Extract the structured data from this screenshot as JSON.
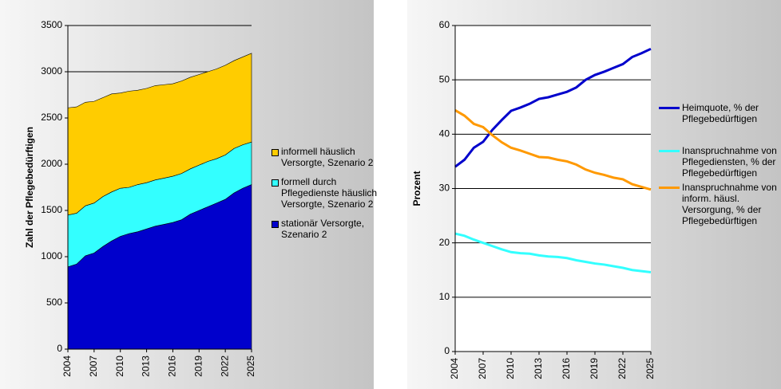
{
  "chart_data": [
    {
      "type": "area",
      "stacked": true,
      "y_label": "Zahl der Pflegebedürftigen",
      "x": [
        2004,
        2005,
        2006,
        2007,
        2008,
        2009,
        2010,
        2011,
        2012,
        2013,
        2014,
        2015,
        2016,
        2017,
        2018,
        2019,
        2020,
        2021,
        2022,
        2023,
        2024,
        2025
      ],
      "xlim": [
        2004,
        2025
      ],
      "xticks": [
        2004,
        2007,
        2010,
        2013,
        2016,
        2019,
        2022,
        2025
      ],
      "ylim": [
        0,
        3500
      ],
      "yticks": [
        0,
        500,
        1000,
        1500,
        2000,
        2500,
        3000,
        3500
      ],
      "grid": true,
      "series": [
        {
          "name": "stationär Versorgte, Szenario 2",
          "color": "#0000cc",
          "values": [
            890,
            920,
            1010,
            1040,
            1110,
            1170,
            1220,
            1250,
            1270,
            1300,
            1330,
            1350,
            1370,
            1400,
            1460,
            1500,
            1540,
            1580,
            1620,
            1690,
            1740,
            1780
          ]
        },
        {
          "name": "formell durch Pflegedienste häuslich Versorgte, Szenario 2",
          "color": "#33ffff",
          "values": [
            560,
            550,
            540,
            540,
            540,
            530,
            520,
            500,
            510,
            500,
            500,
            500,
            500,
            500,
            490,
            490,
            490,
            480,
            480,
            480,
            470,
            460
          ]
        },
        {
          "name": "informell häuslich Versorgte, Szenario 2",
          "color": "#ffcc00",
          "values": [
            1160,
            1150,
            1120,
            1100,
            1070,
            1060,
            1030,
            1040,
            1020,
            1020,
            1020,
            1010,
            1000,
            1000,
            990,
            980,
            970,
            970,
            970,
            950,
            950,
            960
          ]
        }
      ]
    },
    {
      "type": "line",
      "y_label": "Prozent",
      "x": [
        2004,
        2005,
        2006,
        2007,
        2008,
        2009,
        2010,
        2011,
        2012,
        2013,
        2014,
        2015,
        2016,
        2017,
        2018,
        2019,
        2020,
        2021,
        2022,
        2023,
        2024,
        2025
      ],
      "xlim": [
        2004,
        2025
      ],
      "xticks": [
        2004,
        2007,
        2010,
        2013,
        2016,
        2019,
        2022,
        2025
      ],
      "ylim": [
        0,
        60
      ],
      "yticks": [
        0,
        10,
        20,
        30,
        40,
        50,
        60
      ],
      "grid": true,
      "series": [
        {
          "name": "Heimquote, % der Pflegebedürftigen",
          "color": "#0000cc",
          "values": [
            34,
            35.3,
            37.5,
            38.6,
            40.8,
            42.6,
            44.3,
            44.9,
            45.6,
            46.5,
            46.8,
            47.3,
            47.8,
            48.6,
            50,
            50.9,
            51.5,
            52.2,
            52.9,
            54.2,
            54.9,
            55.7
          ]
        },
        {
          "name": "Inanspruchnahme von Pflegediensten, % der Pflegebedürftigen",
          "color": "#33ffff",
          "values": [
            21.7,
            21.3,
            20.6,
            20,
            19.4,
            18.8,
            18.3,
            18.1,
            18,
            17.7,
            17.5,
            17.4,
            17.2,
            16.8,
            16.5,
            16.2,
            16,
            15.7,
            15.4,
            15,
            14.8,
            14.6
          ]
        },
        {
          "name": "Inanspruchnahme von inform. häusl. Versorgung, % der Pflegebedürftigen",
          "color": "#ff9900",
          "values": [
            44.4,
            43.4,
            41.9,
            41.3,
            39.8,
            38.5,
            37.5,
            37,
            36.4,
            35.8,
            35.7,
            35.3,
            35,
            34.4,
            33.5,
            32.9,
            32.5,
            32,
            31.7,
            30.8,
            30.3,
            29.8
          ]
        }
      ]
    }
  ]
}
